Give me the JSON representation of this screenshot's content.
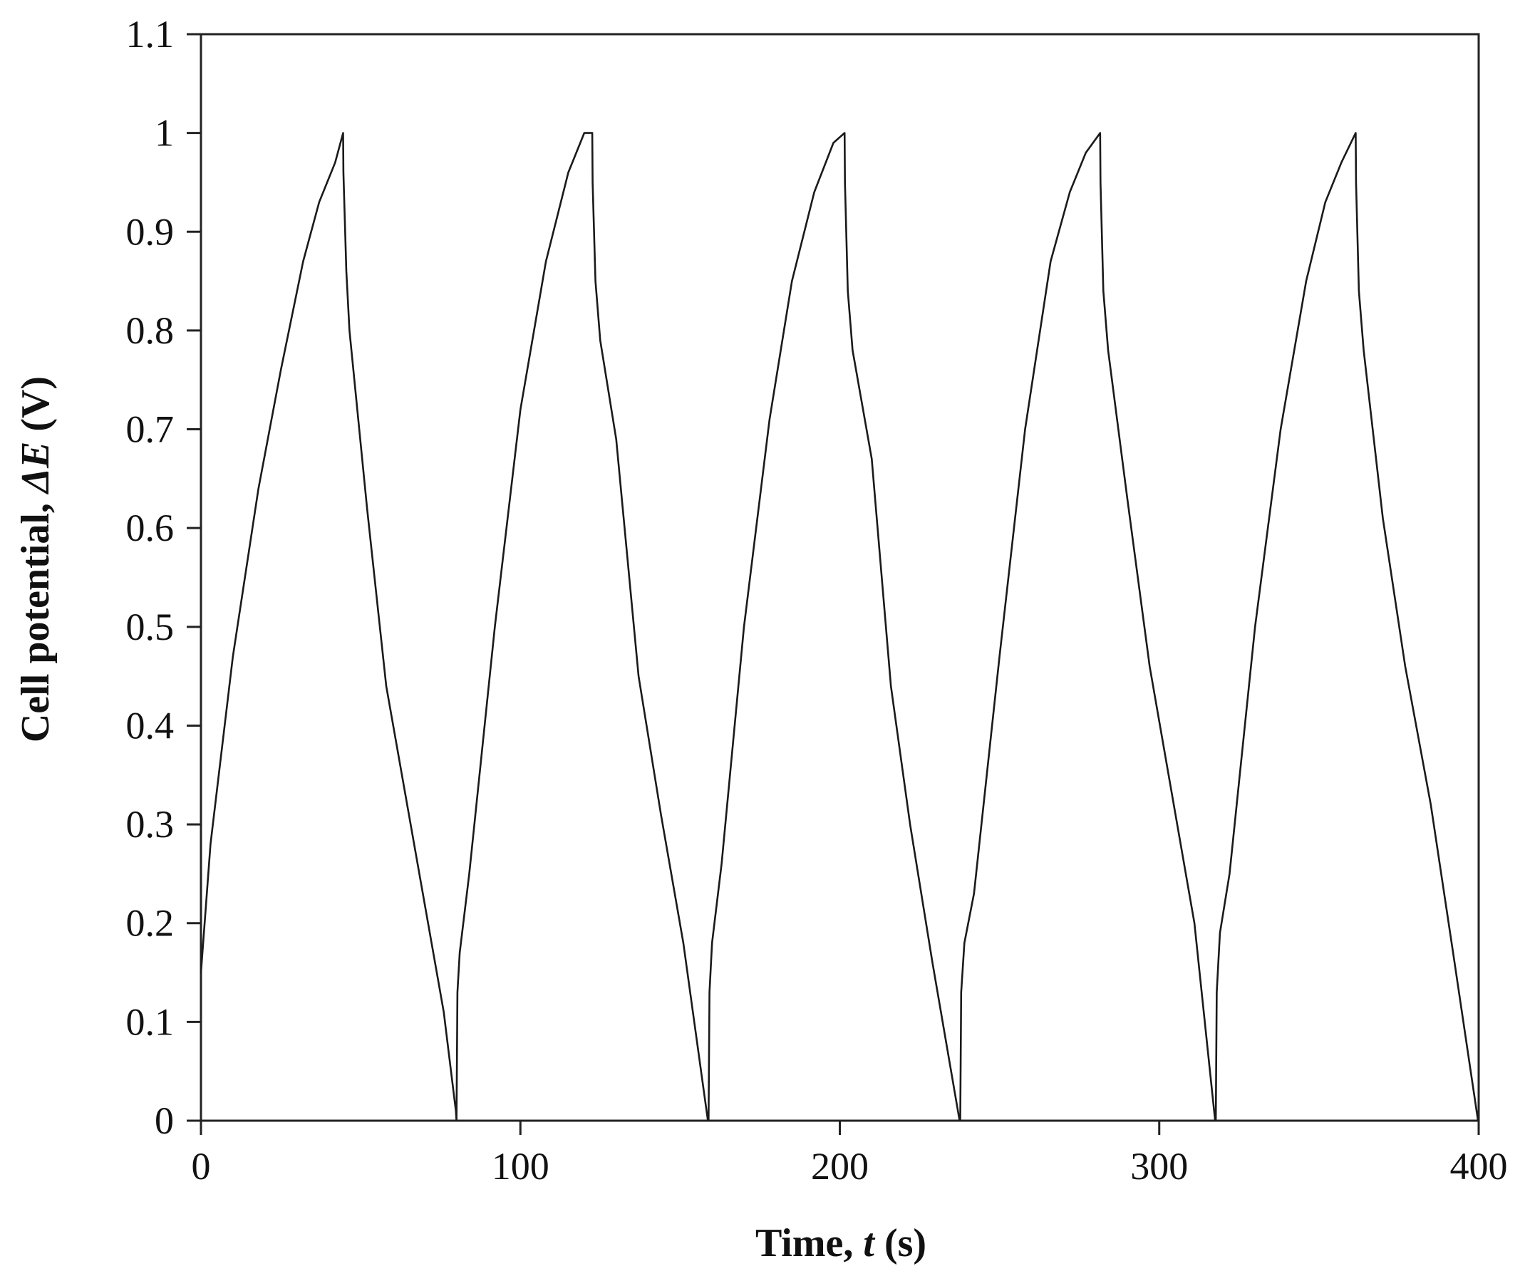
{
  "chart_data": {
    "type": "line",
    "title": "",
    "xlabel": {
      "prefix": "Time, ",
      "symbol": "t",
      "suffix": " (s)"
    },
    "ylabel": {
      "prefix": "Cell potential, ",
      "symbol": "ΔE",
      "suffix": " (V)"
    },
    "xlim": [
      0,
      400
    ],
    "ylim": [
      0,
      1.1
    ],
    "x_ticks": [
      0,
      100,
      200,
      300,
      400
    ],
    "x_tick_labels": [
      "0",
      "100",
      "200",
      "300",
      "400"
    ],
    "y_ticks": [
      0,
      0.1,
      0.2,
      0.3,
      0.4,
      0.5,
      0.6,
      0.7,
      0.8,
      0.9,
      1,
      1.1
    ],
    "y_tick_labels": [
      "0",
      "0.1",
      "0.2",
      "0.3",
      "0.4",
      "0.5",
      "0.6",
      "0.7",
      "0.8",
      "0.9",
      "1",
      "1.1"
    ],
    "grid": false,
    "legend": "none",
    "line_color": "#1a1a1a",
    "series": [
      {
        "x": [
          0,
          3,
          10,
          18,
          25,
          32,
          37,
          42,
          44.5,
          44.6,
          45.5,
          46.5,
          52,
          58,
          64,
          70,
          76,
          79.8,
          80.0,
          80.3,
          81,
          84,
          92,
          100,
          108,
          115,
          120,
          122.5,
          122.6,
          123.5,
          125,
          130,
          137,
          144,
          151,
          158.7,
          158.9,
          159.2,
          160,
          163,
          170,
          178,
          185,
          192,
          198,
          201.5,
          201.6,
          202.5,
          204,
          210,
          216,
          222,
          229,
          237.5,
          237.7,
          238,
          239,
          242,
          250,
          258,
          266,
          272,
          277,
          281.5,
          281.6,
          282.5,
          284,
          290,
          297,
          304,
          311,
          317.5,
          317.7,
          318,
          319,
          322,
          330,
          338,
          346,
          352,
          357,
          361.5,
          361.6,
          362.5,
          364,
          370,
          377,
          385,
          392,
          399.8
        ],
        "y": [
          0.15,
          0.28,
          0.47,
          0.64,
          0.76,
          0.87,
          0.93,
          0.97,
          1.0,
          0.96,
          0.86,
          0.8,
          0.62,
          0.44,
          0.33,
          0.22,
          0.11,
          0.01,
          0.0,
          0.13,
          0.17,
          0.25,
          0.5,
          0.72,
          0.87,
          0.96,
          1.0,
          1.0,
          0.95,
          0.85,
          0.79,
          0.69,
          0.45,
          0.31,
          0.18,
          0.0,
          0.0,
          0.13,
          0.18,
          0.26,
          0.5,
          0.71,
          0.85,
          0.94,
          0.99,
          1.0,
          0.95,
          0.84,
          0.78,
          0.67,
          0.44,
          0.3,
          0.16,
          0.0,
          0.0,
          0.13,
          0.18,
          0.23,
          0.47,
          0.7,
          0.87,
          0.94,
          0.98,
          1.0,
          0.95,
          0.84,
          0.78,
          0.63,
          0.46,
          0.33,
          0.2,
          0.0,
          0.0,
          0.13,
          0.19,
          0.25,
          0.5,
          0.7,
          0.85,
          0.93,
          0.97,
          1.0,
          0.95,
          0.84,
          0.78,
          0.61,
          0.46,
          0.32,
          0.17,
          0.0
        ]
      }
    ]
  }
}
